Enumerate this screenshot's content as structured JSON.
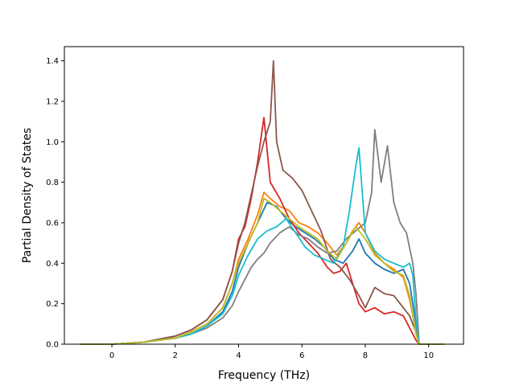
{
  "chart_data": {
    "type": "line",
    "title": "",
    "xlabel": "Frequency (THz)",
    "ylabel": "Partial Density of States",
    "xlim": [
      -1.5,
      11.1
    ],
    "ylim": [
      0.0,
      1.47
    ],
    "xticks": [
      0,
      2,
      4,
      6,
      8,
      10
    ],
    "yticks": [
      0.0,
      0.2,
      0.4,
      0.6,
      0.8,
      1.0,
      1.2,
      1.4
    ],
    "xtick_labels": [
      "0",
      "2",
      "4",
      "6",
      "8",
      "10"
    ],
    "ytick_labels": [
      "0.0",
      "0.2",
      "0.4",
      "0.6",
      "0.8",
      "1.0",
      "1.2",
      "1.4"
    ],
    "grid": false,
    "legend": "none",
    "series": [
      {
        "color": "#1f77b4",
        "x": [
          -1.0,
          0.0,
          1.0,
          2.0,
          2.5,
          3.0,
          3.5,
          3.8,
          4.0,
          4.3,
          4.6,
          4.9,
          5.2,
          5.5,
          5.8,
          6.1,
          6.4,
          6.7,
          7.0,
          7.3,
          7.6,
          7.8,
          8.0,
          8.3,
          8.6,
          8.9,
          9.2,
          9.4,
          9.6,
          9.7,
          10.0,
          10.5
        ],
        "y": [
          0.0,
          0.0,
          0.01,
          0.03,
          0.05,
          0.09,
          0.16,
          0.26,
          0.38,
          0.5,
          0.6,
          0.7,
          0.68,
          0.62,
          0.58,
          0.55,
          0.52,
          0.48,
          0.42,
          0.4,
          0.46,
          0.52,
          0.45,
          0.4,
          0.37,
          0.35,
          0.37,
          0.3,
          0.1,
          0.0,
          0.0,
          0.0
        ]
      },
      {
        "color": "#ff7f0e",
        "x": [
          -1.0,
          0.0,
          1.0,
          2.0,
          2.5,
          3.0,
          3.5,
          3.8,
          4.0,
          4.3,
          4.6,
          4.8,
          5.0,
          5.3,
          5.6,
          5.9,
          6.2,
          6.5,
          6.8,
          7.1,
          7.4,
          7.6,
          7.8,
          8.0,
          8.3,
          8.6,
          8.9,
          9.2,
          9.4,
          9.6,
          9.7,
          10.0,
          10.5
        ],
        "y": [
          0.0,
          0.0,
          0.01,
          0.03,
          0.06,
          0.1,
          0.18,
          0.3,
          0.42,
          0.52,
          0.64,
          0.75,
          0.72,
          0.68,
          0.66,
          0.6,
          0.58,
          0.55,
          0.5,
          0.44,
          0.5,
          0.56,
          0.6,
          0.55,
          0.45,
          0.4,
          0.37,
          0.33,
          0.22,
          0.06,
          0.0,
          0.0,
          0.0
        ]
      },
      {
        "color": "#d62728",
        "x": [
          -1.0,
          0.0,
          1.0,
          2.0,
          2.5,
          3.0,
          3.5,
          3.8,
          4.0,
          4.2,
          4.4,
          4.6,
          4.8,
          5.0,
          5.3,
          5.6,
          5.9,
          6.2,
          6.5,
          6.8,
          7.0,
          7.2,
          7.4,
          7.6,
          7.8,
          8.0,
          8.3,
          8.6,
          8.9,
          9.2,
          9.4,
          9.6,
          9.7,
          10.0,
          10.5
        ],
        "y": [
          0.0,
          0.0,
          0.01,
          0.04,
          0.07,
          0.12,
          0.22,
          0.36,
          0.52,
          0.58,
          0.72,
          0.9,
          1.12,
          0.8,
          0.72,
          0.62,
          0.55,
          0.5,
          0.45,
          0.38,
          0.35,
          0.36,
          0.4,
          0.3,
          0.2,
          0.16,
          0.18,
          0.15,
          0.16,
          0.14,
          0.08,
          0.02,
          0.0,
          0.0,
          0.0
        ]
      },
      {
        "color": "#8c564b",
        "x": [
          -1.0,
          0.0,
          1.0,
          2.0,
          2.5,
          3.0,
          3.5,
          3.8,
          4.0,
          4.2,
          4.4,
          4.6,
          4.8,
          5.0,
          5.1,
          5.2,
          5.4,
          5.7,
          6.0,
          6.3,
          6.6,
          6.9,
          7.2,
          7.5,
          7.8,
          8.0,
          8.3,
          8.6,
          8.9,
          9.2,
          9.4,
          9.6,
          9.7,
          10.0,
          10.5
        ],
        "y": [
          0.0,
          0.0,
          0.01,
          0.04,
          0.07,
          0.12,
          0.22,
          0.36,
          0.5,
          0.6,
          0.74,
          0.88,
          1.0,
          1.1,
          1.4,
          1.0,
          0.86,
          0.82,
          0.76,
          0.66,
          0.56,
          0.42,
          0.38,
          0.32,
          0.24,
          0.18,
          0.28,
          0.25,
          0.24,
          0.18,
          0.14,
          0.06,
          0.0,
          0.0,
          0.0
        ]
      },
      {
        "color": "#7f7f7f",
        "x": [
          -1.0,
          0.0,
          1.0,
          2.0,
          2.5,
          3.0,
          3.5,
          3.8,
          4.0,
          4.2,
          4.4,
          4.6,
          4.8,
          5.0,
          5.3,
          5.6,
          5.9,
          6.2,
          6.5,
          6.8,
          7.1,
          7.4,
          7.7,
          8.0,
          8.2,
          8.3,
          8.5,
          8.7,
          8.9,
          9.1,
          9.3,
          9.5,
          9.6,
          9.7,
          10.0,
          10.5
        ],
        "y": [
          0.0,
          0.0,
          0.01,
          0.03,
          0.05,
          0.08,
          0.13,
          0.19,
          0.26,
          0.32,
          0.38,
          0.42,
          0.45,
          0.5,
          0.55,
          0.58,
          0.54,
          0.52,
          0.48,
          0.45,
          0.46,
          0.52,
          0.56,
          0.6,
          0.75,
          1.06,
          0.8,
          0.98,
          0.7,
          0.6,
          0.55,
          0.4,
          0.25,
          0.0,
          0.0,
          0.0
        ]
      },
      {
        "color": "#17becf",
        "x": [
          -1.0,
          0.0,
          1.0,
          2.0,
          2.5,
          3.0,
          3.5,
          3.8,
          4.0,
          4.3,
          4.6,
          4.9,
          5.2,
          5.5,
          5.8,
          6.1,
          6.4,
          6.7,
          7.0,
          7.3,
          7.5,
          7.7,
          7.8,
          8.0,
          8.3,
          8.6,
          8.9,
          9.2,
          9.4,
          9.5,
          9.6,
          9.7,
          10.0,
          10.5
        ],
        "y": [
          0.0,
          0.0,
          0.01,
          0.03,
          0.05,
          0.09,
          0.15,
          0.24,
          0.34,
          0.44,
          0.52,
          0.56,
          0.58,
          0.62,
          0.55,
          0.48,
          0.44,
          0.42,
          0.4,
          0.48,
          0.66,
          0.88,
          0.97,
          0.55,
          0.46,
          0.42,
          0.4,
          0.38,
          0.4,
          0.34,
          0.12,
          0.0,
          0.0,
          0.0
        ]
      },
      {
        "color": "#bcbd22",
        "x": [
          -1.0,
          0.0,
          1.0,
          2.0,
          2.5,
          3.0,
          3.5,
          3.8,
          4.0,
          4.3,
          4.6,
          4.8,
          5.0,
          5.3,
          5.6,
          5.9,
          6.2,
          6.5,
          6.8,
          7.1,
          7.4,
          7.7,
          8.0,
          8.3,
          8.6,
          8.9,
          9.2,
          9.4,
          9.6,
          9.7,
          10.0,
          10.5
        ],
        "y": [
          0.0,
          0.0,
          0.01,
          0.03,
          0.06,
          0.1,
          0.18,
          0.3,
          0.4,
          0.5,
          0.6,
          0.72,
          0.7,
          0.66,
          0.62,
          0.58,
          0.55,
          0.52,
          0.46,
          0.42,
          0.5,
          0.58,
          0.52,
          0.44,
          0.4,
          0.36,
          0.34,
          0.24,
          0.05,
          0.0,
          0.0,
          0.0
        ]
      }
    ]
  }
}
